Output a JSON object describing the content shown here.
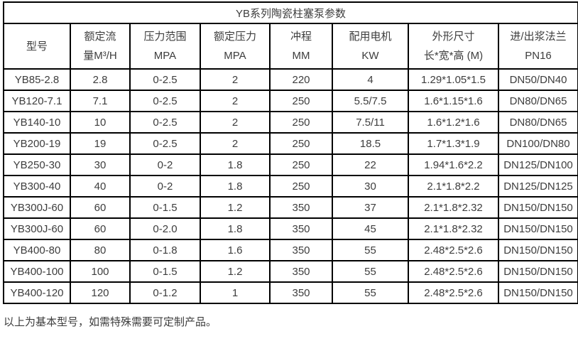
{
  "title": "YB系列陶瓷柱塞泵参数",
  "table": {
    "column_keys": [
      "model",
      "rated-flow",
      "pressure-range",
      "rated-pressure",
      "stroke",
      "motor-power",
      "dimensions",
      "flange"
    ],
    "headers": [
      {
        "key": "model",
        "lines": [
          "型号"
        ]
      },
      {
        "key": "rated-flow",
        "lines": [
          "额定流",
          "量M³/H"
        ]
      },
      {
        "key": "pressure-range",
        "lines": [
          "压力范围",
          "MPA"
        ]
      },
      {
        "key": "rated-pressure",
        "lines": [
          "额定压力",
          "MPA"
        ]
      },
      {
        "key": "stroke",
        "lines": [
          "冲程",
          "MM"
        ]
      },
      {
        "key": "motor-power",
        "lines": [
          "配用电机",
          "KW"
        ]
      },
      {
        "key": "dimensions",
        "lines": [
          "外形尺寸",
          "长*宽*高 (M)"
        ]
      },
      {
        "key": "flange",
        "lines": [
          "进/出浆法兰",
          "PN16"
        ]
      }
    ],
    "rows": [
      [
        "YB85-2.8",
        "2.8",
        "0-2.5",
        "2",
        "220",
        "4",
        "1.29*1.05*1.5",
        "DN50/DN40"
      ],
      [
        "YB120-7.1",
        "7.1",
        "0-2.5",
        "2",
        "250",
        "5.5/7.5",
        "1.6*1.15*1.6",
        "DN80/DN65"
      ],
      [
        "YB140-10",
        "10",
        "0-2.5",
        "2",
        "250",
        "7.5/11",
        "1.6*1.2*1.6",
        "DN80/DN65"
      ],
      [
        "YB200-19",
        "19",
        "0-2.5",
        "2",
        "250",
        "18.5",
        "1.7*1.3*1.9",
        "DN100/DN80"
      ],
      [
        "YB250-30",
        "30",
        "0-2",
        "1.8",
        "250",
        "22",
        "1.94*1.6*2.2",
        "DN125/DN100"
      ],
      [
        "YB300-40",
        "40",
        "0-2",
        "1.8",
        "250",
        "30",
        "2.1*1.8*2.2",
        "DN125/DN125"
      ],
      [
        "YB300J-60",
        "60",
        "0-1.5",
        "1.2",
        "350",
        "37",
        "2.1*1.8*2.32",
        "DN150/DN150"
      ],
      [
        "YB300J-60",
        "60",
        "0-2.0",
        "1.8",
        "350",
        "45",
        "2.1*1.8*2.32",
        "DN150/DN150"
      ],
      [
        "YB400-80",
        "80",
        "0-1.8",
        "1.6",
        "350",
        "55",
        "2.48*2.5*2.6",
        "DN150/DN150"
      ],
      [
        "YB400-100",
        "100",
        "0-1.5",
        "1.2",
        "350",
        "55",
        "2.48*2.5*2.6",
        "DN150/DN150"
      ],
      [
        "YB400-120",
        "120",
        "0-1.2",
        "1",
        "350",
        "55",
        "2.48*2.5*2.6",
        "DN150/DN150"
      ]
    ]
  },
  "footer_note": "以上为基本型号，如需特殊需要可定制产品。",
  "colors": {
    "border": "#000000",
    "text": "#3d3d3d",
    "background": "#ffffff"
  }
}
